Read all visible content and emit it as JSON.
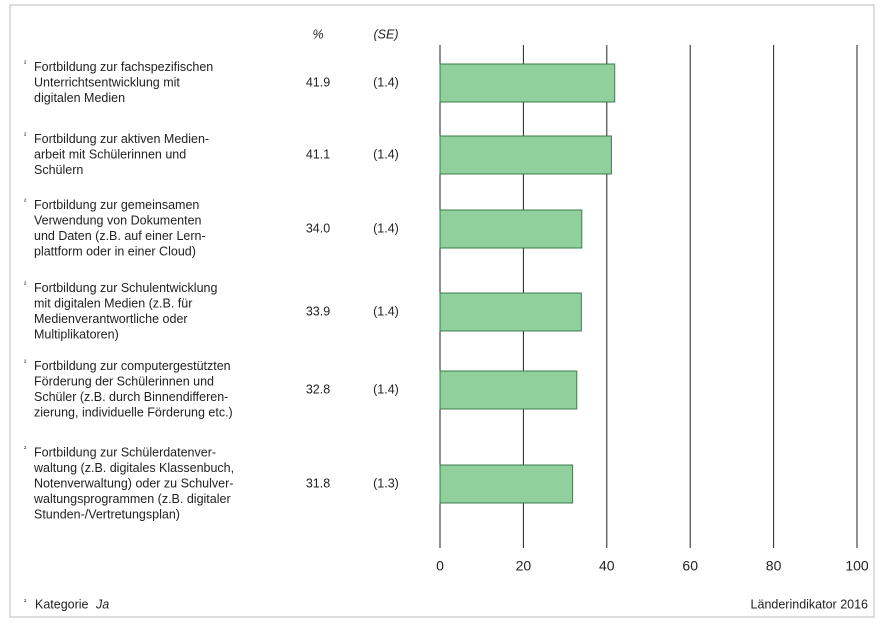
{
  "chart_data": {
    "type": "bar",
    "orientation": "horizontal",
    "column_headers": [
      "%",
      "(SE)"
    ],
    "footnote_marker": "²",
    "categories": [
      [
        "Fortbildung zur fachspezifischen",
        "Unterrichtsentwicklung mit",
        "digitalen Medien"
      ],
      [
        "Fortbildung zur aktiven Medien-",
        "arbeit mit Schülerinnen und",
        "Schülern"
      ],
      [
        "Fortbildung zur gemeinsamen",
        "Verwendung von Dokumenten",
        "und Daten (z.B. auf einer Lern-",
        "plattform oder in einer Cloud)"
      ],
      [
        "Fortbildung zur Schulentwicklung",
        "mit digitalen Medien (z.B. für",
        "Medienverantwortliche oder",
        "Multiplikatoren)"
      ],
      [
        "Fortbildung zur computergestützten",
        "Förderung der Schülerinnen und",
        "Schüler (z.B. durch Binnendifferen-",
        "zierung, individuelle Förderung etc.)"
      ],
      [
        "Fortbildung zur Schülerdatenver-",
        "waltung (z.B. digitales Klassenbuch,",
        "Notenverwaltung) oder zu Schulver-",
        "waltungsprogrammen (z.B. digitaler",
        "Stunden-/Vertretungsplan)"
      ]
    ],
    "values": [
      41.9,
      41.1,
      34.0,
      33.9,
      32.8,
      31.8
    ],
    "value_labels": [
      "41.9",
      "41.1",
      "34.0",
      "33.9",
      "32.8",
      "31.8"
    ],
    "se": [
      1.4,
      1.4,
      1.4,
      1.4,
      1.4,
      1.3
    ],
    "se_labels": [
      "(1.4)",
      "(1.4)",
      "(1.4)",
      "(1.4)",
      "(1.4)",
      "(1.3)"
    ],
    "color": "#8fd09c",
    "xlim": [
      0,
      100
    ],
    "xticks": [
      0,
      20,
      40,
      60,
      80,
      100
    ],
    "grid": true,
    "footnote": {
      "text": "Kategorie",
      "emphasis": "Ja"
    },
    "source": "Länderindikator 2016"
  }
}
